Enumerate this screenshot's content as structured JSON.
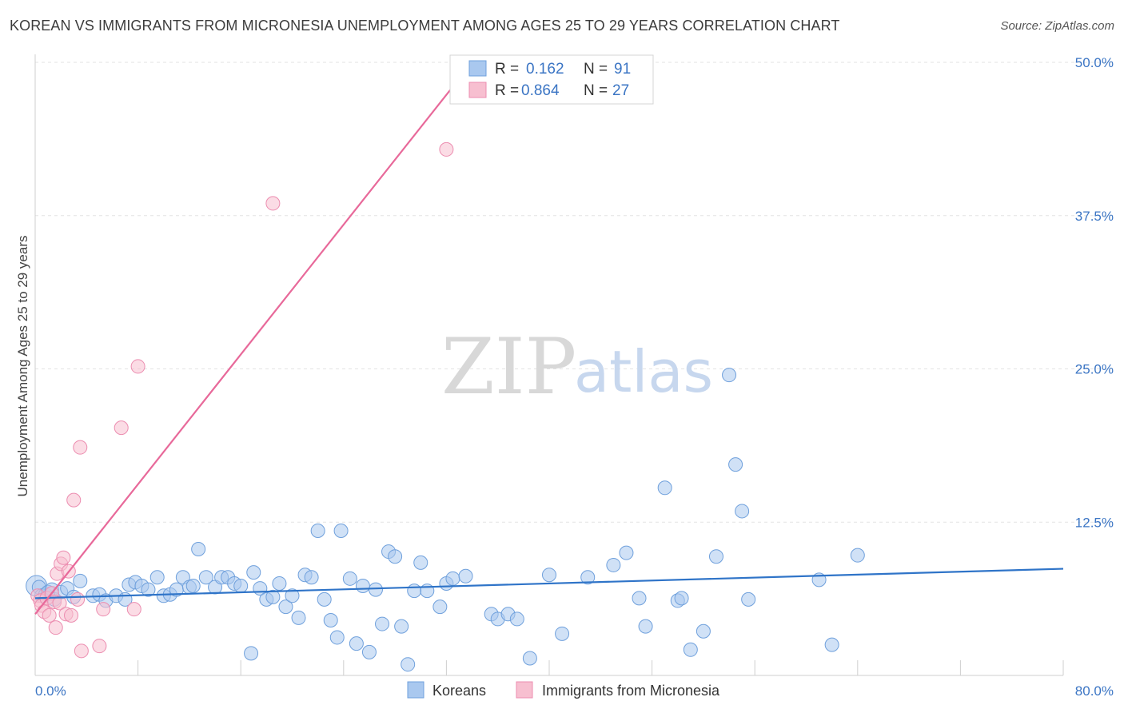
{
  "title": "KOREAN VS IMMIGRANTS FROM MICRONESIA UNEMPLOYMENT AMONG AGES 25 TO 29 YEARS CORRELATION CHART",
  "source": "Source: ZipAtlas.com",
  "watermark": {
    "zip": "ZIP",
    "atlas": "atlas"
  },
  "colors": {
    "blue_fill": "#a9c8ef",
    "blue_stroke": "#6fa0dc",
    "blue_line": "#2f74c8",
    "pink_fill": "#f7bfd0",
    "pink_stroke": "#ec8db0",
    "pink_line": "#e8699a",
    "grid": "#e3e3e3",
    "axis_text": "#3b75c4"
  },
  "legend": {
    "r_label": "R =",
    "n_label": "N =",
    "rows": [
      {
        "r": "0.162",
        "n": "91",
        "series": "koreans"
      },
      {
        "r": "0.864",
        "n": "27",
        "series": "micronesia"
      }
    ]
  },
  "bottom_legend": {
    "koreans": "Koreans",
    "micronesia": "Immigrants from Micronesia"
  },
  "chart_data": {
    "type": "scatter",
    "title": "KOREAN VS IMMIGRANTS FROM MICRONESIA UNEMPLOYMENT AMONG AGES 25 TO 29 YEARS CORRELATION CHART",
    "xlabel": "",
    "ylabel": "Unemployment Among Ages 25 to 29 years",
    "xlim": [
      0,
      80
    ],
    "ylim": [
      0,
      50
    ],
    "x_tick_labels": [
      "0.0%",
      "80.0%"
    ],
    "y_ticks": [
      12.5,
      25,
      37.5,
      50
    ],
    "y_tick_labels": [
      "12.5%",
      "25.0%",
      "37.5%",
      "50.0%"
    ],
    "legend_position": "top-center",
    "series": [
      {
        "name": "Koreans",
        "color": "blue",
        "trend": {
          "x": [
            0,
            80
          ],
          "y": [
            6.3,
            8.7
          ]
        },
        "points": [
          [
            0.3,
            7.2
          ],
          [
            0.5,
            6.5
          ],
          [
            0.8,
            6.6
          ],
          [
            1.0,
            6.8
          ],
          [
            1.3,
            7.0
          ],
          [
            1.5,
            6.2
          ],
          [
            2.0,
            6.8
          ],
          [
            2.5,
            7.1
          ],
          [
            3.0,
            6.4
          ],
          [
            3.5,
            7.7
          ],
          [
            4.5,
            6.5
          ],
          [
            5.0,
            6.6
          ],
          [
            5.5,
            6.1
          ],
          [
            6.3,
            6.5
          ],
          [
            7.0,
            6.2
          ],
          [
            7.3,
            7.4
          ],
          [
            7.8,
            7.6
          ],
          [
            8.3,
            7.3
          ],
          [
            8.8,
            7.0
          ],
          [
            9.5,
            8.0
          ],
          [
            10.0,
            6.5
          ],
          [
            10.5,
            6.6
          ],
          [
            11.0,
            7.0
          ],
          [
            11.5,
            8.0
          ],
          [
            12.0,
            7.2
          ],
          [
            12.3,
            7.3
          ],
          [
            12.7,
            10.3
          ],
          [
            13.3,
            8.0
          ],
          [
            14.0,
            7.2
          ],
          [
            14.5,
            8.0
          ],
          [
            15.0,
            8.0
          ],
          [
            15.5,
            7.5
          ],
          [
            16.0,
            7.3
          ],
          [
            16.8,
            1.8
          ],
          [
            17.0,
            8.4
          ],
          [
            17.5,
            7.1
          ],
          [
            18.0,
            6.2
          ],
          [
            18.5,
            6.4
          ],
          [
            19.0,
            7.5
          ],
          [
            19.5,
            5.6
          ],
          [
            20.0,
            6.5
          ],
          [
            20.5,
            4.7
          ],
          [
            21.0,
            8.2
          ],
          [
            21.5,
            8.0
          ],
          [
            22.0,
            11.8
          ],
          [
            22.5,
            6.2
          ],
          [
            23.0,
            4.5
          ],
          [
            23.5,
            3.1
          ],
          [
            23.8,
            11.8
          ],
          [
            24.5,
            7.9
          ],
          [
            25.0,
            2.6
          ],
          [
            25.5,
            7.3
          ],
          [
            26.0,
            1.9
          ],
          [
            26.5,
            7.0
          ],
          [
            27.0,
            4.2
          ],
          [
            27.5,
            10.1
          ],
          [
            28.0,
            9.7
          ],
          [
            28.5,
            4.0
          ],
          [
            29.0,
            0.9
          ],
          [
            29.5,
            6.9
          ],
          [
            30.0,
            9.2
          ],
          [
            30.5,
            6.9
          ],
          [
            31.5,
            5.6
          ],
          [
            32.0,
            7.5
          ],
          [
            32.5,
            7.9
          ],
          [
            33.5,
            8.1
          ],
          [
            35.5,
            5.0
          ],
          [
            36.0,
            4.6
          ],
          [
            36.8,
            5.0
          ],
          [
            37.5,
            4.6
          ],
          [
            38.5,
            1.4
          ],
          [
            40.0,
            8.2
          ],
          [
            41.0,
            3.4
          ],
          [
            43.0,
            8.0
          ],
          [
            45.0,
            9.0
          ],
          [
            46.0,
            10.0
          ],
          [
            47.0,
            6.3
          ],
          [
            47.5,
            4.0
          ],
          [
            49.0,
            15.3
          ],
          [
            50.0,
            6.1
          ],
          [
            50.3,
            6.3
          ],
          [
            51.0,
            2.1
          ],
          [
            52.0,
            3.6
          ],
          [
            53.0,
            9.7
          ],
          [
            54.0,
            24.5
          ],
          [
            54.5,
            17.2
          ],
          [
            55.0,
            13.4
          ],
          [
            55.5,
            6.2
          ],
          [
            61.0,
            7.8
          ],
          [
            62.0,
            2.5
          ],
          [
            64.0,
            9.8
          ]
        ]
      },
      {
        "name": "Immigrants from Micronesia",
        "color": "pink",
        "trend": {
          "x": [
            0,
            34
          ],
          "y": [
            5.0,
            50.0
          ]
        },
        "points": [
          [
            0.2,
            6.5
          ],
          [
            0.4,
            6.1
          ],
          [
            0.5,
            5.7
          ],
          [
            0.7,
            5.2
          ],
          [
            0.9,
            6.3
          ],
          [
            1.1,
            4.9
          ],
          [
            1.3,
            6.7
          ],
          [
            1.5,
            6.0
          ],
          [
            1.6,
            3.9
          ],
          [
            1.7,
            8.3
          ],
          [
            1.9,
            5.9
          ],
          [
            2.0,
            9.1
          ],
          [
            2.2,
            9.6
          ],
          [
            2.4,
            5.0
          ],
          [
            2.6,
            8.5
          ],
          [
            3.0,
            14.3
          ],
          [
            3.3,
            6.2
          ],
          [
            3.5,
            18.6
          ],
          [
            3.6,
            2.0
          ],
          [
            5.0,
            2.4
          ],
          [
            5.3,
            5.4
          ],
          [
            6.7,
            20.2
          ],
          [
            7.7,
            5.4
          ],
          [
            8.0,
            25.2
          ],
          [
            18.5,
            38.5
          ],
          [
            32.0,
            42.9
          ],
          [
            2.8,
            4.9
          ]
        ]
      }
    ]
  }
}
